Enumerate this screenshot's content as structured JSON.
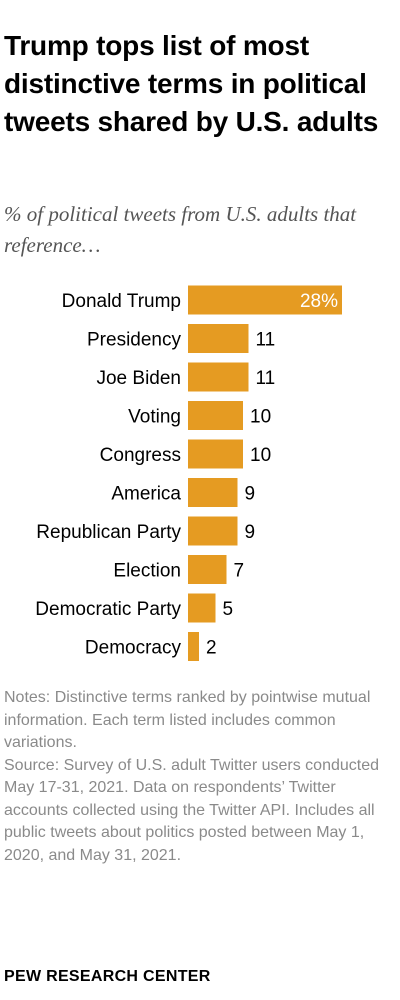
{
  "title": "Trump tops list of most distinctive terms in political tweets shared by U.S. adults",
  "subtitle": "% of political tweets from U.S. adults that reference…",
  "chart_data": {
    "type": "bar",
    "orientation": "horizontal",
    "categories": [
      "Donald Trump",
      "Presidency",
      "Joe Biden",
      "Voting",
      "Congress",
      "America",
      "Republican Party",
      "Election",
      "Democratic Party",
      "Democracy"
    ],
    "values": [
      28,
      11,
      11,
      10,
      10,
      9,
      9,
      7,
      5,
      2
    ],
    "value_labels": [
      "28%",
      "11",
      "11",
      "10",
      "10",
      "9",
      "9",
      "7",
      "5",
      "2"
    ],
    "bar_color": "#E59B22",
    "grid": false,
    "legend": "none"
  },
  "notes": {
    "note": "Notes: Distinctive terms ranked by pointwise mutual information. Each term listed includes common variations.",
    "source": "Source: Survey of U.S. adult Twitter users conducted May 17-31, 2021. Data on respondents’ Twitter accounts collected using the Twitter API. Includes all public tweets about politics posted between May 1, 2020, and May 31, 2021."
  },
  "footer": "PEW RESEARCH CENTER"
}
